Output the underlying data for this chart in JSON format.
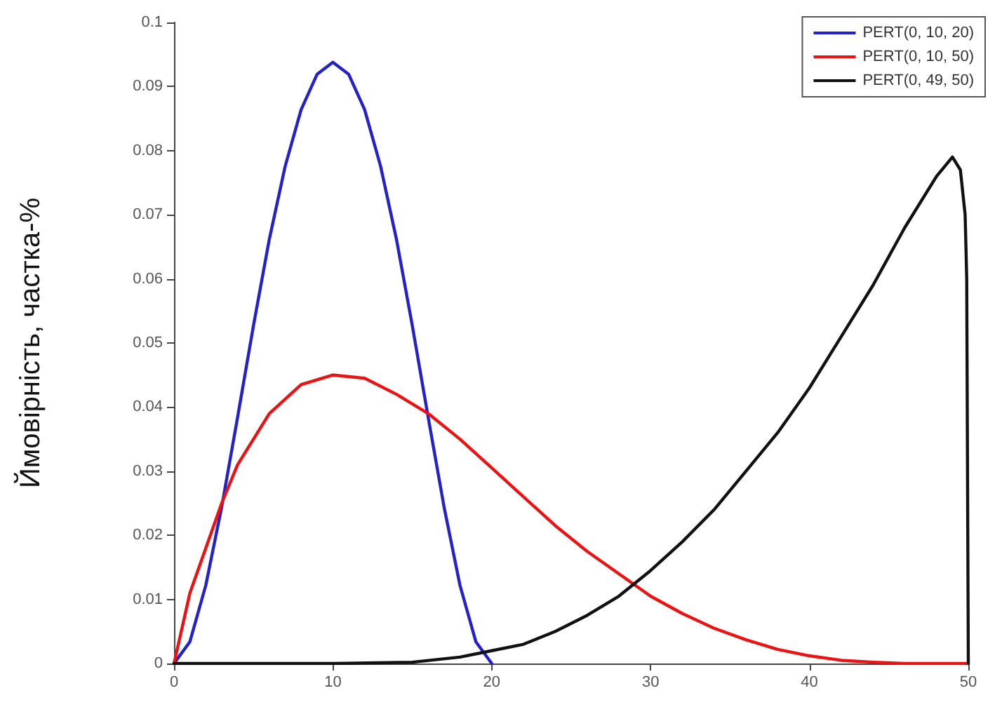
{
  "chart_data": {
    "type": "line",
    "ylabel": "Ймовірність, частка-%",
    "xlim": [
      0,
      50
    ],
    "xticks": [
      0,
      10,
      20,
      30,
      40,
      50
    ],
    "ylim": [
      0,
      0.1
    ],
    "yticks": [
      0,
      0.01,
      0.02,
      0.03,
      0.04,
      0.05,
      0.06,
      0.07,
      0.08,
      0.09,
      0.1
    ],
    "grid": false,
    "legend": "top right",
    "marker": "none",
    "line_style": "solid",
    "series": [
      {
        "name": "PERT(0, 10, 20)",
        "color": "#2222cc",
        "x": [
          0,
          1,
          2,
          3,
          4,
          5,
          6,
          7,
          8,
          9,
          10,
          11,
          12,
          13,
          14,
          15,
          16,
          17,
          18,
          19,
          20
        ],
        "values": [
          0,
          0.0034,
          0.0122,
          0.0244,
          0.0384,
          0.0527,
          0.0662,
          0.0776,
          0.0864,
          0.0919,
          0.0938,
          0.0919,
          0.0864,
          0.0776,
          0.0662,
          0.0527,
          0.0384,
          0.0244,
          0.0122,
          0.0034,
          0
        ]
      },
      {
        "name": "PERT(0, 10, 50)",
        "color": "#ee1111",
        "x": [
          0,
          1,
          2,
          3,
          4,
          5,
          6,
          8,
          10,
          12,
          14,
          16,
          18,
          20,
          22,
          24,
          26,
          28,
          30,
          32,
          34,
          36,
          38,
          40,
          42,
          44,
          46,
          50
        ],
        "values": [
          0,
          0.011,
          0.018,
          0.025,
          0.031,
          0.035,
          0.039,
          0.0435,
          0.045,
          0.0445,
          0.042,
          0.039,
          0.035,
          0.0305,
          0.026,
          0.0215,
          0.0175,
          0.014,
          0.0105,
          0.0078,
          0.0055,
          0.0037,
          0.0022,
          0.0012,
          0.0005,
          0.0002,
          0,
          0
        ]
      },
      {
        "name": "PERT(0, 49, 50)",
        "color": "#111111",
        "x": [
          0,
          10,
          15,
          18,
          20,
          22,
          24,
          26,
          28,
          30,
          32,
          34,
          36,
          38,
          40,
          42,
          44,
          46,
          48,
          49,
          49.5,
          49.8,
          49.9,
          50
        ],
        "values": [
          0,
          0,
          0.0002,
          0.001,
          0.002,
          0.003,
          0.005,
          0.0075,
          0.0105,
          0.0145,
          0.019,
          0.024,
          0.03,
          0.036,
          0.043,
          0.051,
          0.059,
          0.068,
          0.076,
          0.079,
          0.077,
          0.07,
          0.06,
          0
        ]
      }
    ]
  }
}
